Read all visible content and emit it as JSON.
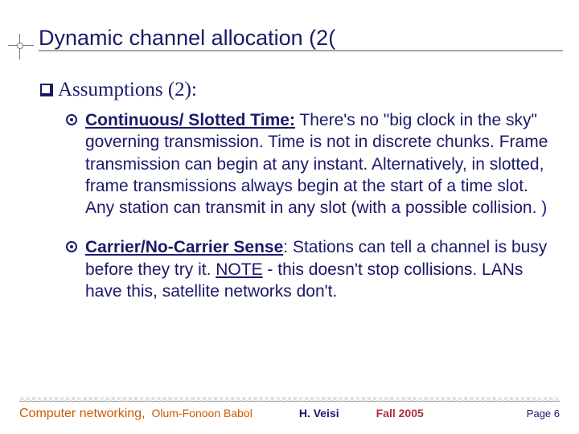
{
  "colors": {
    "text_primary": "#1a1a6a",
    "accent_orange": "#cc5a00",
    "accent_red": "#b03040",
    "rule_gray": "#7a7a7a",
    "background": "#ffffff"
  },
  "typography": {
    "title_fontsize": 27,
    "subheading_fontsize": 25,
    "body_fontsize": 21,
    "footer_fontsize_main": 16,
    "footer_fontsize_small": 14,
    "font_family_body": "Comic Sans MS",
    "font_family_subheading": "Times New Roman"
  },
  "title": "Dynamic channel allocation (2(",
  "subheading": "Assumptions (2):",
  "items": [
    {
      "label_bold": "Continuous/ Slotted Time:",
      "rest": " There's no \"big clock in the sky\" governing transmission.  Time is not in discrete chunks.       Frame transmission can begin at any instant. Alternatively, in slotted, frame transmissions always begin at the start of a time slot. Any station can transmit in any slot (with a possible collision. )"
    },
    {
      "label_bold": "Carrier/No-Carrier Sense",
      "rest_lead": ": Stations can tell a channel is busy before they try it.  ",
      "note_label": "NOTE",
      "rest_tail": " - this doesn't stop collisions.  LANs have this, satellite networks don't."
    }
  ],
  "footer": {
    "course": "Computer networking,",
    "org": "Olum-Fonoon Babol",
    "author": "H. Veisi",
    "term": "Fall 2005",
    "page": "Page 6"
  }
}
